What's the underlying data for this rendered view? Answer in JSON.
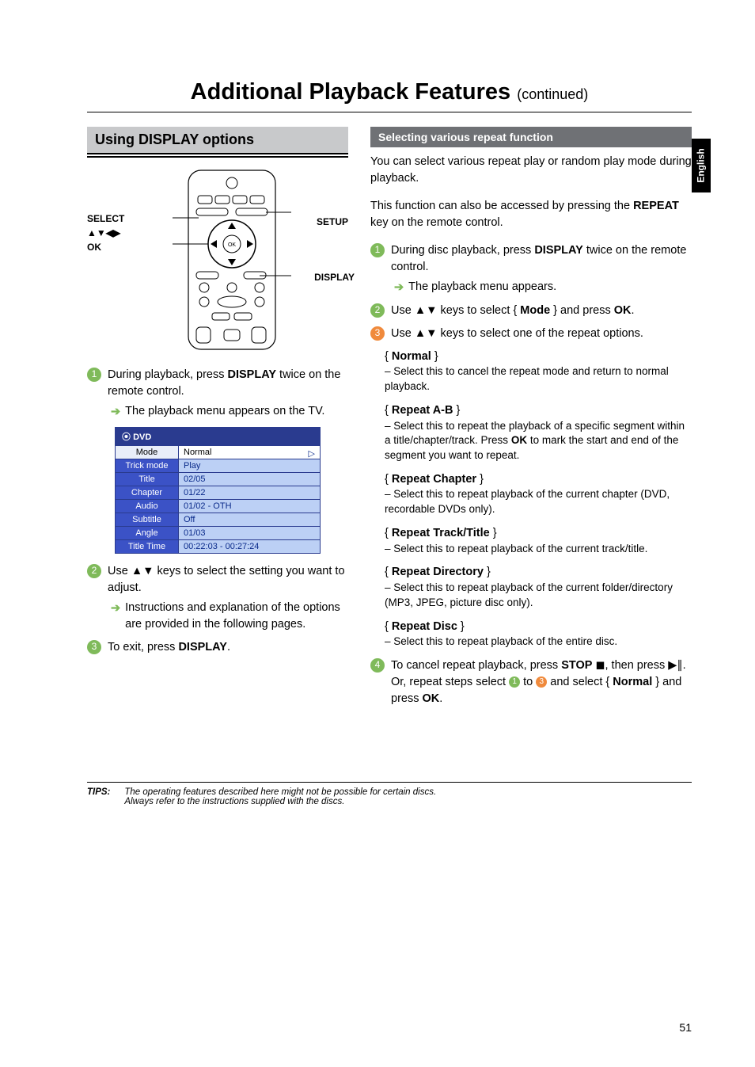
{
  "page": {
    "title": "Additional Playback Features",
    "title_suffix": "(continued)",
    "side_tab": "English",
    "page_number": "51"
  },
  "left": {
    "section_title": "Using DISPLAY options",
    "remote_labels": {
      "select": "SELECT",
      "arrows": "▲▼◀▶",
      "ok": "OK",
      "setup": "SETUP",
      "display": "DISPLAY"
    },
    "step1": {
      "num": "1",
      "text_a": "During playback, press ",
      "text_b": "DISPLAY",
      "text_c": " twice on the remote control.",
      "sub": "The playback menu appears on the TV."
    },
    "osd": {
      "head_icon": "⦿",
      "head": "DVD",
      "rows": [
        {
          "k": "Mode",
          "v": "Normal",
          "selected": true,
          "tri": true
        },
        {
          "k": "Trick mode",
          "v": "Play"
        },
        {
          "k": "Title",
          "v": "02/05"
        },
        {
          "k": "Chapter",
          "v": "01/22"
        },
        {
          "k": "Audio",
          "v": "01/02 - OTH"
        },
        {
          "k": "Subtitle",
          "v": "Off"
        },
        {
          "k": "Angle",
          "v": "01/03"
        },
        {
          "k": "Title Time",
          "v": "00:22:03 - 00:27:24"
        }
      ]
    },
    "step2": {
      "num": "2",
      "text": "Use ▲▼ keys to select the setting you want to adjust.",
      "sub": "Instructions and explanation of the options are provided in the following pages."
    },
    "step3": {
      "num": "3",
      "text_a": "To exit, press ",
      "text_b": "DISPLAY",
      "text_c": "."
    }
  },
  "right": {
    "sub_title": "Selecting various repeat function",
    "intro1": "You can select various repeat play or random play mode during playback.",
    "intro2_a": "This function can also be accessed by pressing the ",
    "intro2_b": "REPEAT",
    "intro2_c": " key on the remote control.",
    "s1": {
      "num": "1",
      "text_a": "During disc playback, press ",
      "text_b": "DISPLAY",
      "text_c": " twice on the remote control.",
      "sub": "The playback menu appears."
    },
    "s2": {
      "num": "2",
      "text_a": "Use ▲▼ keys to select { ",
      "text_b": "Mode",
      "text_c": " } and press ",
      "text_d": "OK",
      "text_e": "."
    },
    "s3": {
      "num": "3",
      "text": "Use ▲▼ keys to select one of the repeat options."
    },
    "opts": [
      {
        "title": "Normal",
        "desc": "–  Select this to cancel the repeat mode and return to normal playback."
      },
      {
        "title": "Repeat A-B",
        "desc_a": "–  Select this to repeat the playback of a specific segment within a title/chapter/track. Press ",
        "desc_b": "OK",
        "desc_c": " to mark the start and end of the segment you want to repeat."
      },
      {
        "title": "Repeat Chapter",
        "desc": "–  Select this to repeat playback of the current chapter (DVD, recordable DVDs only)."
      },
      {
        "title": "Repeat Track/Title",
        "desc": "–  Select this to repeat playback of the current track/title."
      },
      {
        "title": "Repeat Directory",
        "desc": "–  Select this to repeat playback of the current folder/directory (MP3, JPEG, picture disc only)."
      },
      {
        "title": "Repeat Disc",
        "desc": "–  Select this to repeat playback of the entire disc."
      }
    ],
    "s4": {
      "num": "4",
      "text_a": "To cancel repeat playback, press ",
      "text_b": "STOP",
      "text_c": " ◼, then press ▶∥. Or, repeat steps select ",
      "text_d": " to ",
      "text_e": " and select { ",
      "text_f": "Normal",
      "text_g": " } and press ",
      "text_h": "OK",
      "text_i": "."
    }
  },
  "tips": {
    "label": "TIPS:",
    "line1": "The operating features described here might not be possible for certain discs.",
    "line2": "Always refer to the instructions supplied with the discs."
  },
  "colors": {
    "green": "#7fba5a",
    "orange": "#f08a3c",
    "gray_bar": "#6f7175",
    "section_bg": "#c8c9cb",
    "osd_border": "#2a3b8f",
    "osd_k_bg": "#3b52c6",
    "osd_v_bg": "#bcd0f5"
  }
}
